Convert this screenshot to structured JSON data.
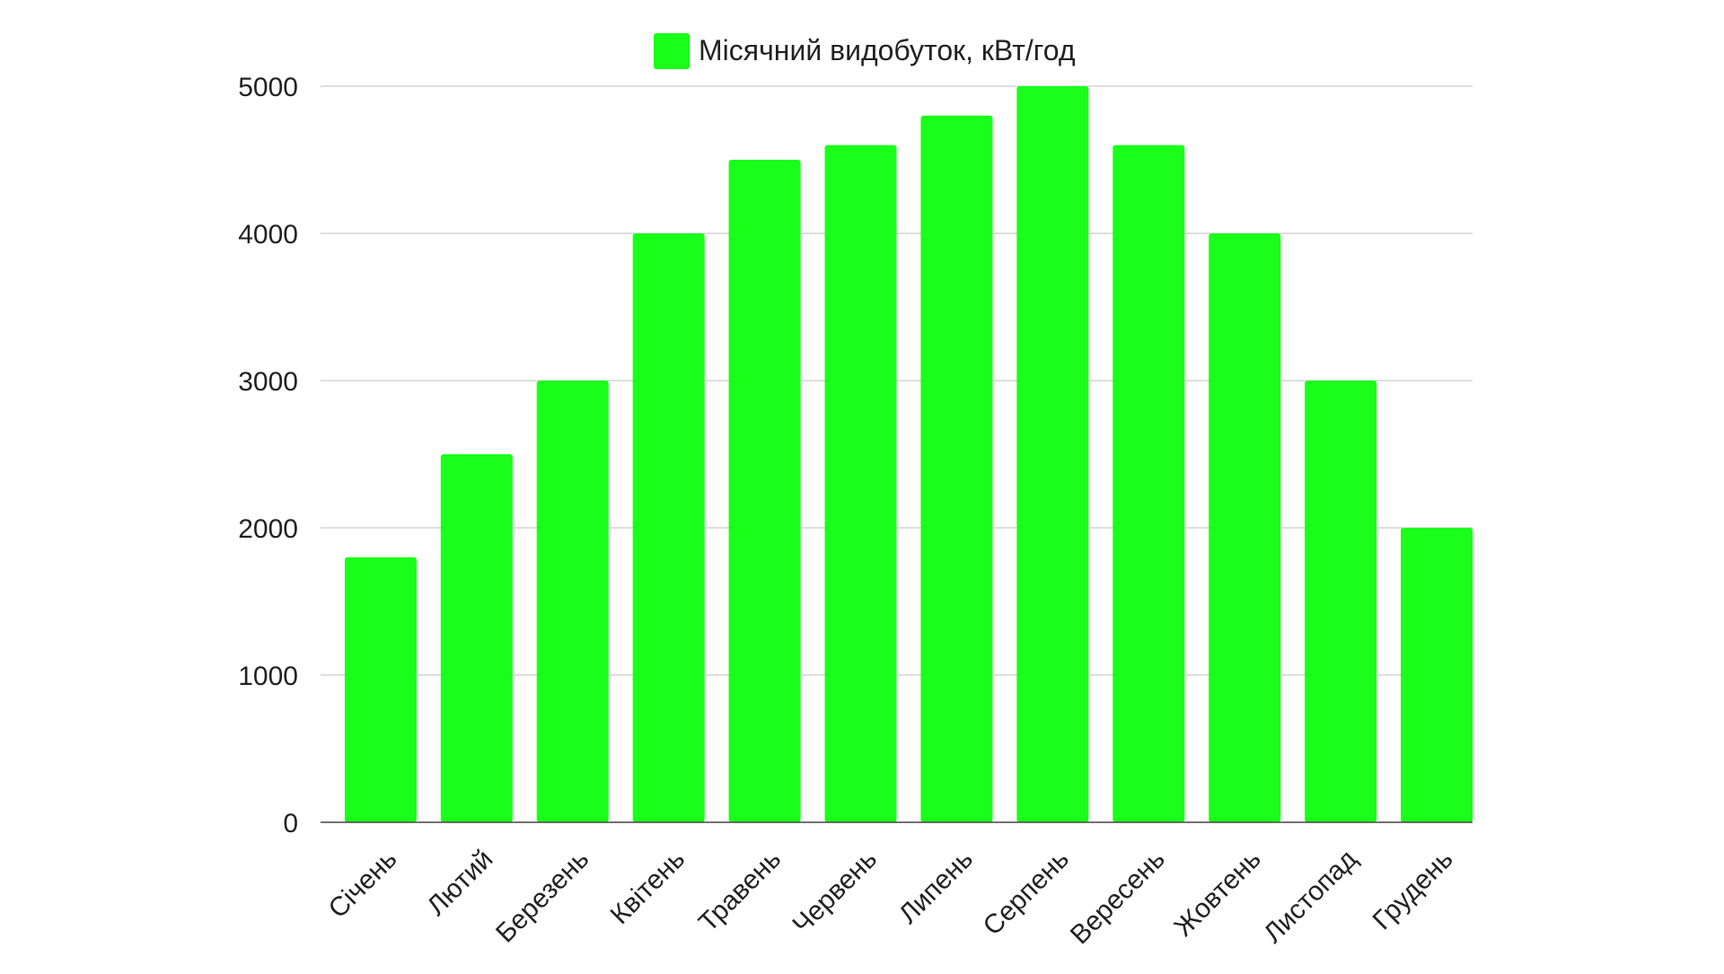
{
  "chart_data": {
    "type": "bar",
    "categories": [
      "Січень",
      "Лютий",
      "Березень",
      "Квітень",
      "Травень",
      "Червень",
      "Липень",
      "Серпень",
      "Вересень",
      "Жовтень",
      "Листопад",
      "Грудень"
    ],
    "series": [
      {
        "name": "Місячний видобуток, кВт/год",
        "color": "#1aff1a",
        "values": [
          1800,
          2500,
          3000,
          4000,
          4500,
          4600,
          4800,
          5000,
          4600,
          4000,
          3000,
          2000
        ]
      }
    ],
    "title": "",
    "xlabel": "",
    "ylabel": "",
    "ylim": [
      0,
      5000
    ],
    "yticks": [
      0,
      1000,
      2000,
      3000,
      4000,
      5000
    ],
    "grid": true,
    "legend_position": "top-center"
  }
}
